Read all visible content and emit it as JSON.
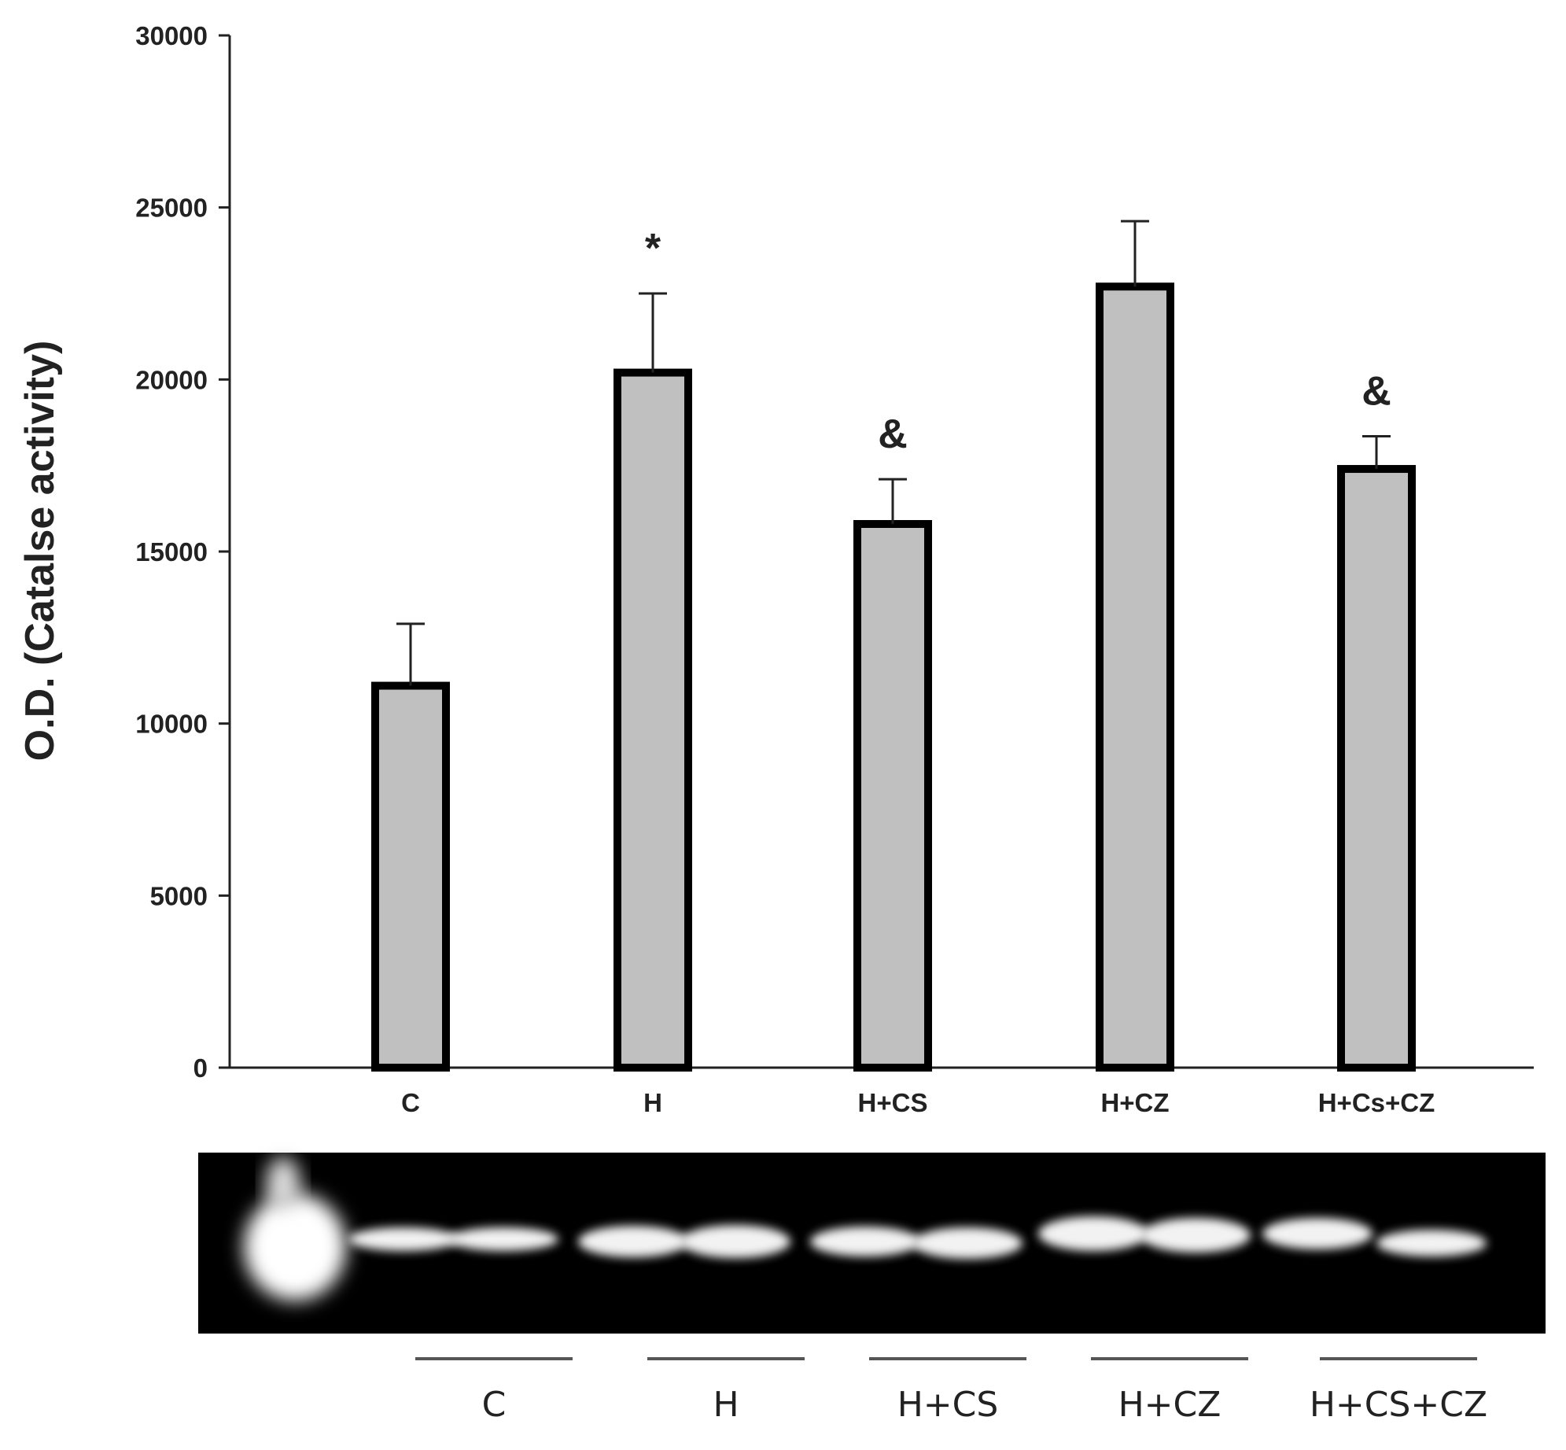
{
  "chart_data": {
    "type": "bar",
    "ylabel": "O.D. (Catalse activity)",
    "xlabel": "",
    "ylim": [
      0,
      30000
    ],
    "yticks": [
      0,
      5000,
      10000,
      15000,
      20000,
      25000,
      30000
    ],
    "categories": [
      "C",
      "H",
      "H+CS",
      "H+CZ",
      "H+Cs+CZ"
    ],
    "values": [
      11100,
      20200,
      15800,
      22700,
      17400
    ],
    "errors": [
      1800,
      2300,
      1300,
      1900,
      950
    ],
    "annotations": [
      "",
      "*",
      "&",
      "",
      "&"
    ],
    "grid": false,
    "colors": {
      "bar_fill": "#c0c0c0",
      "bar_edge": "#000000",
      "axis": "#222222"
    }
  },
  "gel": {
    "lane_groups": [
      "C",
      "H",
      "H+CS",
      "H+CZ",
      "H+CS+CZ"
    ],
    "colors": {
      "background": "#000000",
      "band": "#ffffff",
      "underline": "#555555"
    }
  }
}
